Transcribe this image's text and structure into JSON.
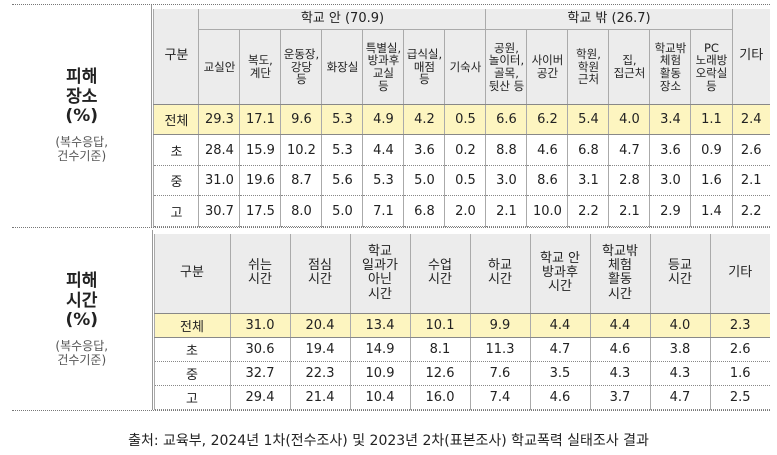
{
  "sections": [
    {
      "label": "피해\n장소\n(%)",
      "note": "(복수응답,\n건수기준)",
      "table": {
        "corner": "구분",
        "groups": [
          {
            "label": "학교 안 (70.9)",
            "columns": [
              "교실안",
              "복도,\n계단",
              "운동장,\n강당\n등",
              "화장실",
              "특별실,\n방과후\n교실\n등",
              "급식실,\n매점\n등",
              "기숙사"
            ]
          },
          {
            "label": "학교 밖 (26.7)",
            "columns": [
              "공원,\n놀이터,\n골목,\n뒷산 등",
              "사이버\n공간",
              "학원,\n학원\n근처",
              "집,\n집근처",
              "학교밖\n체험\n활동\n장소",
              "PC\n노래방\n오락실\n등"
            ]
          }
        ],
        "last": "기타",
        "rows": [
          {
            "label": "전체",
            "values": [
              "29.3",
              "17.1",
              "9.6",
              "5.3",
              "4.9",
              "4.2",
              "0.5",
              "6.6",
              "6.2",
              "5.4",
              "4.0",
              "3.4",
              "1.1",
              "2.4"
            ]
          },
          {
            "label": "초",
            "values": [
              "28.4",
              "15.9",
              "10.2",
              "5.3",
              "4.4",
              "3.6",
              "0.2",
              "8.8",
              "4.6",
              "6.8",
              "4.7",
              "3.6",
              "0.9",
              "2.6"
            ]
          },
          {
            "label": "중",
            "values": [
              "31.0",
              "19.6",
              "8.7",
              "5.6",
              "5.3",
              "5.0",
              "0.5",
              "3.0",
              "8.6",
              "3.1",
              "2.8",
              "3.0",
              "1.6",
              "2.1"
            ]
          },
          {
            "label": "고",
            "values": [
              "30.7",
              "17.5",
              "8.0",
              "5.0",
              "7.1",
              "6.8",
              "2.0",
              "2.1",
              "10.0",
              "2.2",
              "2.1",
              "2.9",
              "1.4",
              "2.2"
            ]
          }
        ]
      }
    },
    {
      "label": "피해\n시간\n(%)",
      "note": "(복수응답,\n건수기준)",
      "table": {
        "corner": "구분",
        "columns": [
          "쉬는\n시간",
          "점심\n시간",
          "학교\n일과가\n아닌\n시간",
          "수업\n시간",
          "하교\n시간",
          "학교 안\n방과후\n시간",
          "학교밖\n체험\n활동\n시간",
          "등교\n시간",
          "기타"
        ],
        "rows": [
          {
            "label": "전체",
            "values": [
              "31.0",
              "20.4",
              "13.4",
              "10.1",
              "9.9",
              "4.4",
              "4.4",
              "4.0",
              "2.3"
            ]
          },
          {
            "label": "초",
            "values": [
              "30.6",
              "19.4",
              "14.9",
              "8.1",
              "11.3",
              "4.7",
              "4.6",
              "3.8",
              "2.6"
            ]
          },
          {
            "label": "중",
            "values": [
              "32.7",
              "22.3",
              "10.9",
              "12.6",
              "7.6",
              "3.5",
              "4.3",
              "4.3",
              "1.6"
            ]
          },
          {
            "label": "고",
            "values": [
              "29.4",
              "21.4",
              "10.4",
              "16.0",
              "7.4",
              "4.6",
              "3.7",
              "4.7",
              "2.5"
            ]
          }
        ]
      }
    }
  ],
  "footer": "출처: 교육부, 2024년 1차(전수조사) 및 2023년 2차(표본조사) 학교폭력 실태조사 결과"
}
